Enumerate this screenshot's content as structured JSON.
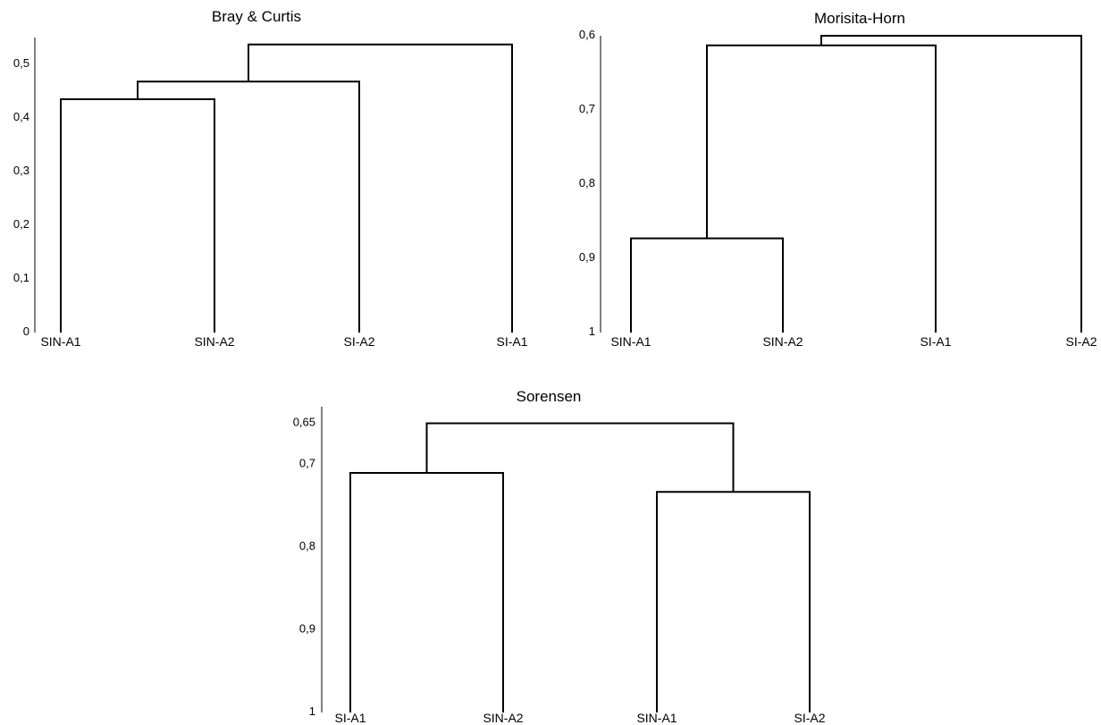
{
  "chart_data": [
    {
      "type": "dendrogram",
      "title": "Bray & Curtis",
      "ylim": [
        0,
        0.55
      ],
      "y_inverted": false,
      "yticks": [
        0,
        0.1,
        0.2,
        0.3,
        0.4,
        0.5
      ],
      "ytick_labels": [
        "0",
        "0,1",
        "0,2",
        "0,3",
        "0,4",
        "0,5"
      ],
      "leaves": [
        "SIN-A1",
        "SIN-A2",
        "SI-A2",
        "SI-A1"
      ],
      "merges": [
        {
          "children": [
            "SIN-A1",
            "SIN-A2"
          ],
          "height": 0.435
        },
        {
          "children": [
            "SIN-A1+SIN-A2",
            "SI-A2"
          ],
          "height": 0.468
        },
        {
          "children": [
            "SIN-A1+SIN-A2+SI-A2",
            "SI-A1"
          ],
          "height": 0.537
        }
      ]
    },
    {
      "type": "dendrogram",
      "title": "Morisita-Horn",
      "ylim": [
        0.6,
        1.0
      ],
      "y_inverted": true,
      "yticks": [
        0.6,
        0.7,
        0.8,
        0.9,
        1.0
      ],
      "ytick_labels": [
        "0,6",
        "0,7",
        "0,8",
        "0,9",
        "1"
      ],
      "leaves": [
        "SIN-A1",
        "SIN-A2",
        "SI-A1",
        "SI-A2"
      ],
      "merges": [
        {
          "children": [
            "SIN-A1",
            "SIN-A2"
          ],
          "height": 0.873
        },
        {
          "children": [
            "SIN-A1+SIN-A2",
            "SI-A1"
          ],
          "height": 0.613
        },
        {
          "children": [
            "SIN-A1+SIN-A2+SI-A1",
            "SI-A2"
          ],
          "height": 0.6
        }
      ]
    },
    {
      "type": "dendrogram",
      "title": "Sorensen",
      "ylim": [
        0.65,
        1.0
      ],
      "y_inverted": true,
      "yticks": [
        0.65,
        0.7,
        0.8,
        0.9,
        1.0
      ],
      "ytick_labels": [
        "0,65",
        "0,7",
        "0,8",
        "0,9",
        "1"
      ],
      "leaves": [
        "SI-A1",
        "SIN-A2",
        "SIN-A1",
        "SI-A2"
      ],
      "merges": [
        {
          "children": [
            "SI-A1",
            "SIN-A2"
          ],
          "height": 0.71
        },
        {
          "children": [
            "SIN-A1",
            "SI-A2"
          ],
          "height": 0.733
        },
        {
          "children": [
            "SI-A1+SIN-A2",
            "SIN-A1+SI-A2"
          ],
          "height": 0.65
        }
      ]
    }
  ]
}
